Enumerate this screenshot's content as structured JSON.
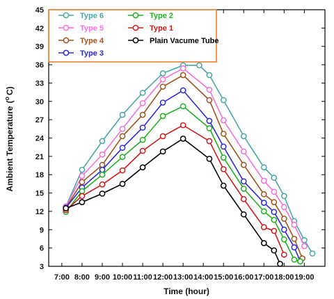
{
  "chart_data": {
    "type": "line",
    "xlabel": "Time (hour)",
    "ylabel": "Ambient Temperature (°C)",
    "ylabel_main": "Ambient Temperature",
    "ylabel_sup": "o",
    "ylabel_unit": "C)",
    "ylabel_open": "(",
    "x_ticks": [
      "7:00",
      "8:00",
      "9:00",
      "10:00",
      "11:00",
      "12:00",
      "13:00",
      "14:00",
      "15:00",
      "16:00",
      "17:00",
      "18:00",
      "19:00"
    ],
    "ylim": [
      3,
      45
    ],
    "y_ticks": [
      3,
      6,
      9,
      12,
      15,
      18,
      21,
      24,
      27,
      30,
      33,
      36,
      39,
      42,
      45
    ],
    "legend_position": "top-left",
    "series": [
      {
        "name": "Type 6",
        "color": "#4aa6a6",
        "x": [
          7.2,
          8.0,
          9.0,
          10.0,
          11.0,
          12.0,
          13.0,
          13.8,
          14.3,
          15.0,
          16.0,
          17.0,
          17.5,
          18.0,
          18.5,
          19.0,
          19.4
        ],
        "y": [
          12.8,
          18.8,
          23.5,
          27.8,
          31.4,
          34.6,
          35.9,
          35.9,
          34.3,
          30.2,
          24.3,
          19.2,
          17.5,
          14.5,
          10.4,
          7.3,
          5.1
        ]
      },
      {
        "name": "Type 5",
        "color": "#f070e0",
        "x": [
          7.2,
          8.0,
          9.0,
          10.0,
          11.0,
          12.0,
          13.0,
          14.3,
          15.0,
          16.0,
          17.0,
          17.5,
          18.0,
          18.5,
          19.0
        ],
        "y": [
          12.8,
          17.8,
          21.3,
          25.5,
          29.7,
          33.6,
          35.4,
          31.9,
          26.9,
          21.8,
          17.0,
          15.2,
          12.7,
          9.8,
          6.3
        ]
      },
      {
        "name": "Type 4",
        "color": "#a0521c",
        "x": [
          7.2,
          8.0,
          9.0,
          10.0,
          11.0,
          12.0,
          13.0,
          14.3,
          15.0,
          16.0,
          17.0,
          17.5,
          18.0,
          18.5,
          18.9
        ],
        "y": [
          12.6,
          16.8,
          19.6,
          24.3,
          27.8,
          32.4,
          34.3,
          30.2,
          24.7,
          19.6,
          14.8,
          13.5,
          10.8,
          7.5,
          4.3
        ]
      },
      {
        "name": "Type 3",
        "color": "#2b2bd6",
        "x": [
          7.2,
          8.0,
          9.0,
          10.0,
          11.0,
          12.0,
          13.0,
          14.3,
          15.0,
          16.0,
          17.0,
          17.5,
          18.0,
          18.5,
          18.8
        ],
        "y": [
          12.6,
          15.9,
          18.8,
          22.4,
          25.7,
          29.8,
          31.8,
          26.8,
          22.6,
          16.9,
          13.4,
          11.9,
          9.0,
          6.1,
          3.8
        ]
      },
      {
        "name": "Type 2",
        "color": "#1fb01f",
        "x": [
          7.2,
          8.0,
          9.0,
          10.0,
          11.0,
          12.0,
          13.0,
          14.3,
          15.0,
          16.0,
          17.0,
          17.5,
          18.0,
          18.5,
          18.8
        ],
        "y": [
          11.9,
          15.3,
          18.0,
          20.9,
          23.7,
          27.6,
          29.2,
          25.6,
          20.8,
          15.7,
          12.0,
          10.6,
          7.4,
          4.1,
          3.8
        ]
      },
      {
        "name": "Type 1",
        "color": "#d01818",
        "x": [
          7.2,
          8.0,
          9.0,
          10.0,
          11.0,
          12.0,
          13.0,
          14.3,
          15.0,
          16.0,
          17.0,
          17.5,
          18.0
        ],
        "y": [
          12.2,
          14.5,
          16.4,
          18.7,
          21.9,
          24.3,
          26.1,
          23.5,
          18.9,
          14.0,
          9.4,
          8.8,
          4.9
        ]
      },
      {
        "name": "Plain Vacume Tube",
        "color": "#000000",
        "x": [
          7.2,
          8.0,
          9.0,
          10.0,
          11.0,
          12.0,
          13.0,
          14.3,
          15.0,
          16.0,
          17.0,
          17.5,
          17.8
        ],
        "y": [
          12.5,
          13.5,
          14.9,
          16.5,
          19.2,
          21.8,
          23.9,
          20.6,
          16.2,
          11.5,
          6.8,
          5.6,
          3.4
        ]
      }
    ]
  }
}
